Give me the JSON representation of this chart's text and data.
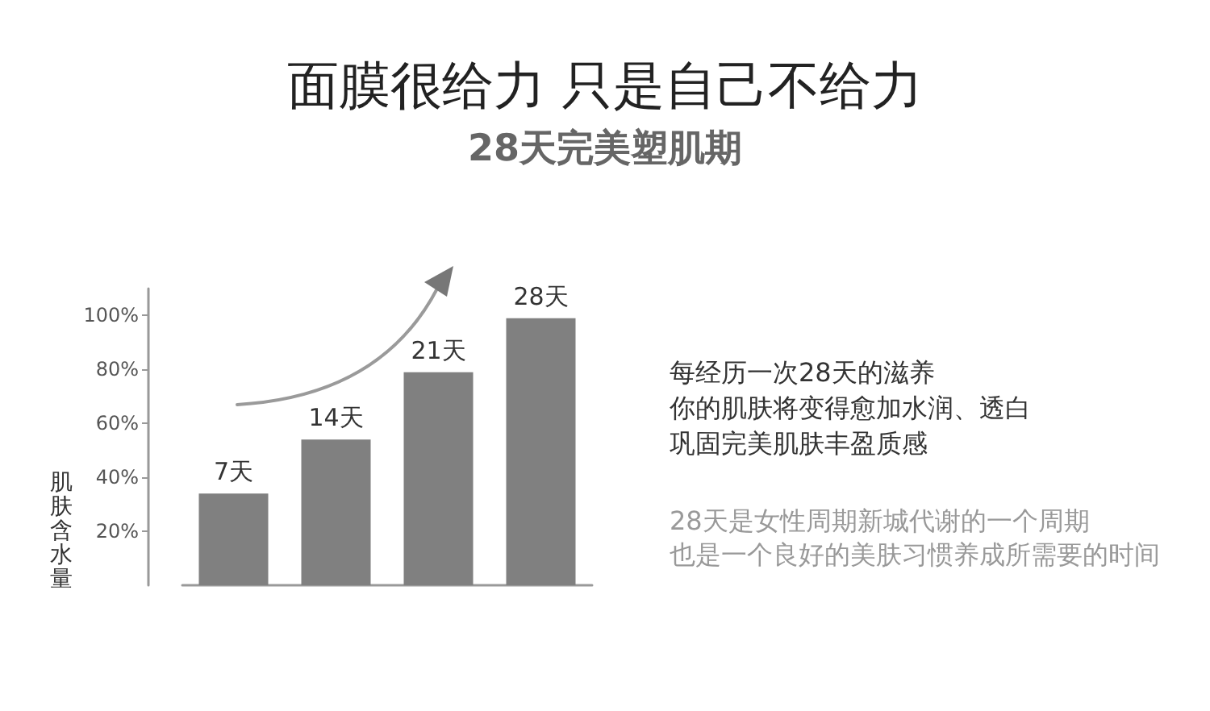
{
  "chart_data": {
    "type": "bar",
    "title": "面膜很给力 只是自己不给力",
    "subtitle": "28天完美塑肌期",
    "ylabel": "肌肤含水量",
    "categories": [
      "7天",
      "14天",
      "21天",
      "28天"
    ],
    "values": [
      34,
      54,
      79,
      99
    ],
    "color": "#808080",
    "ylim": [
      0,
      110
    ],
    "yticks": [
      {
        "value": 20,
        "label": "20%"
      },
      {
        "value": 40,
        "label": "40%"
      },
      {
        "value": 60,
        "label": "60%"
      },
      {
        "value": 80,
        "label": "80%"
      },
      {
        "value": 100,
        "label": "100%"
      }
    ],
    "annotations": [
      "每经历一次28天的滋养",
      "你的肌肤将变得愈加水润、透白",
      "巩固完美肌肤丰盈质感",
      "28天是女性周期新城代谢的一个周期",
      "也是一个良好的美肤习惯养成所需要的时间"
    ]
  }
}
